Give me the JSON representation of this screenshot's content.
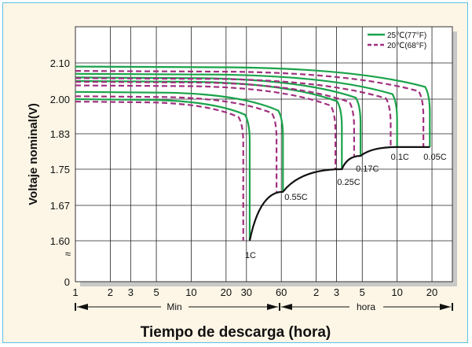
{
  "chart_data": {
    "type": "line",
    "xlabel": "Tiempo de descarga (hora)",
    "ylabel": "Voltaje nominal(V)",
    "x_scale": "log",
    "x_ticks": [
      "1",
      "2",
      "3",
      "5",
      "10",
      "20",
      "30",
      "60",
      "2",
      "3",
      "5",
      "10",
      "20"
    ],
    "y_ticks": [
      "2.10",
      "2.00",
      "1.83",
      "1.75",
      "1.67",
      "1.60",
      "0"
    ],
    "y_break_marker": "≈",
    "ranges": {
      "minutes": "Min",
      "hours": "hora"
    },
    "legend": {
      "placement": "top-right",
      "items": [
        {
          "label": "25℃(77°F)",
          "color": "#1aa34a",
          "style": "solid"
        },
        {
          "label": "20℃(68°F)",
          "color": "#a0307f",
          "style": "dashed"
        }
      ]
    },
    "series": [
      {
        "name": "1C",
        "start_voltage": 2.0,
        "end_minutes": 32,
        "end_voltage": 1.6
      },
      {
        "name": "0.55C",
        "start_voltage": 2.02,
        "end_minutes": 62,
        "end_voltage": 1.7
      },
      {
        "name": "0.25C",
        "start_voltage": 2.05,
        "end_minutes": 200,
        "end_voltage": 1.75
      },
      {
        "name": "0.17C",
        "start_voltage": 2.06,
        "end_minutes": 290,
        "end_voltage": 1.78
      },
      {
        "name": "0.1C",
        "start_voltage": 2.07,
        "end_minutes": 600,
        "end_voltage": 1.8
      },
      {
        "name": "0.05C",
        "start_voltage": 2.09,
        "end_minutes": 1150,
        "end_voltage": 1.8
      }
    ],
    "end_voltage_curve": {
      "color": "#111111"
    },
    "colors": {
      "plot_bg": "#ffffff",
      "plot_shadow": "#c8c8c8",
      "frame_bg": "#fdf6e6",
      "frame_border": "#5bc0e8"
    }
  }
}
